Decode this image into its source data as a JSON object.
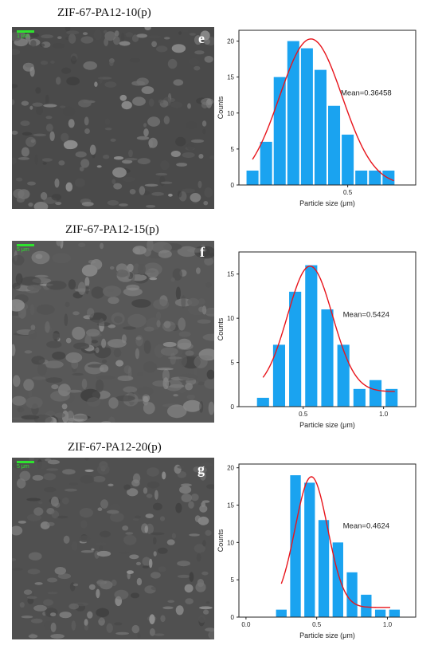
{
  "panels": [
    {
      "title": "ZIF-67-PA12-10(p)",
      "letter": "e",
      "scale_label": "1 μm",
      "chart": {
        "type": "bar",
        "xlabel": "Particle size (μm)",
        "ylabel": "Counts",
        "annotation": "Mean=0.36458",
        "xlim": [
          0.1,
          0.75
        ],
        "ylim": [
          0,
          21.5
        ],
        "bar_width": 0.044,
        "x": [
          0.15,
          0.2,
          0.25,
          0.3,
          0.35,
          0.4,
          0.45,
          0.5,
          0.55,
          0.6,
          0.65
        ],
        "values": [
          2,
          6,
          15,
          20,
          19,
          16,
          11,
          7,
          2,
          2,
          2
        ],
        "xticks": [
          0.5
        ],
        "xtick_labels": [
          "0.5"
        ],
        "yticks": [
          0,
          5,
          10,
          15,
          20
        ],
        "fit": {
          "mean": 0.36458,
          "sigma": 0.115,
          "amp": 20.3,
          "x_range": [
            0.15,
            0.67
          ]
        },
        "bar_color": "#1aa3f0",
        "fit_color": "#e8141b"
      }
    },
    {
      "title": "ZIF-67-PA12-15(p)",
      "letter": "f",
      "scale_label": "5 μm",
      "chart": {
        "type": "bar",
        "xlabel": "Particle size (μm)",
        "ylabel": "Counts",
        "annotation": "Mean=0.5424",
        "xlim": [
          0.1,
          1.2
        ],
        "ylim": [
          0,
          17.5
        ],
        "bar_width": 0.075,
        "x": [
          0.25,
          0.35,
          0.45,
          0.55,
          0.65,
          0.75,
          0.85,
          0.95,
          1.05
        ],
        "values": [
          1,
          7,
          13,
          16,
          11,
          7,
          2,
          3,
          2
        ],
        "xticks": [
          0.5,
          1.0
        ],
        "xtick_labels": [
          "0.5",
          "1.0"
        ],
        "yticks": [
          0,
          5,
          10,
          15
        ],
        "fit": {
          "mean": 0.5424,
          "sigma": 0.14,
          "amp": 14.2,
          "base": 1.7,
          "x_range": [
            0.25,
            1.07
          ]
        },
        "bar_color": "#1aa3f0",
        "fit_color": "#e8141b"
      }
    },
    {
      "title": "ZIF-67-PA12-20(p)",
      "letter": "g",
      "scale_label": "5 μm",
      "chart": {
        "type": "bar",
        "xlabel": "Particle size (μm)",
        "ylabel": "Counts",
        "annotation": "Mean=0.4624",
        "xlim": [
          -0.05,
          1.2
        ],
        "ylim": [
          0,
          20.5
        ],
        "bar_width": 0.075,
        "x": [
          0.25,
          0.35,
          0.45,
          0.55,
          0.65,
          0.75,
          0.85,
          0.95,
          1.05
        ],
        "values": [
          1,
          19,
          18,
          13,
          10,
          6,
          3,
          1,
          1
        ],
        "xticks": [
          0.0,
          0.5,
          1.0
        ],
        "xtick_labels": [
          "0.0",
          "0.5",
          "1.0"
        ],
        "yticks": [
          0,
          5,
          10,
          15,
          20
        ],
        "fit": {
          "mean": 0.4624,
          "sigma": 0.115,
          "amp": 17.5,
          "base": 1.3,
          "x_range": [
            0.25,
            1.02
          ]
        },
        "bar_color": "#1aa3f0",
        "fit_color": "#e8141b"
      }
    }
  ]
}
